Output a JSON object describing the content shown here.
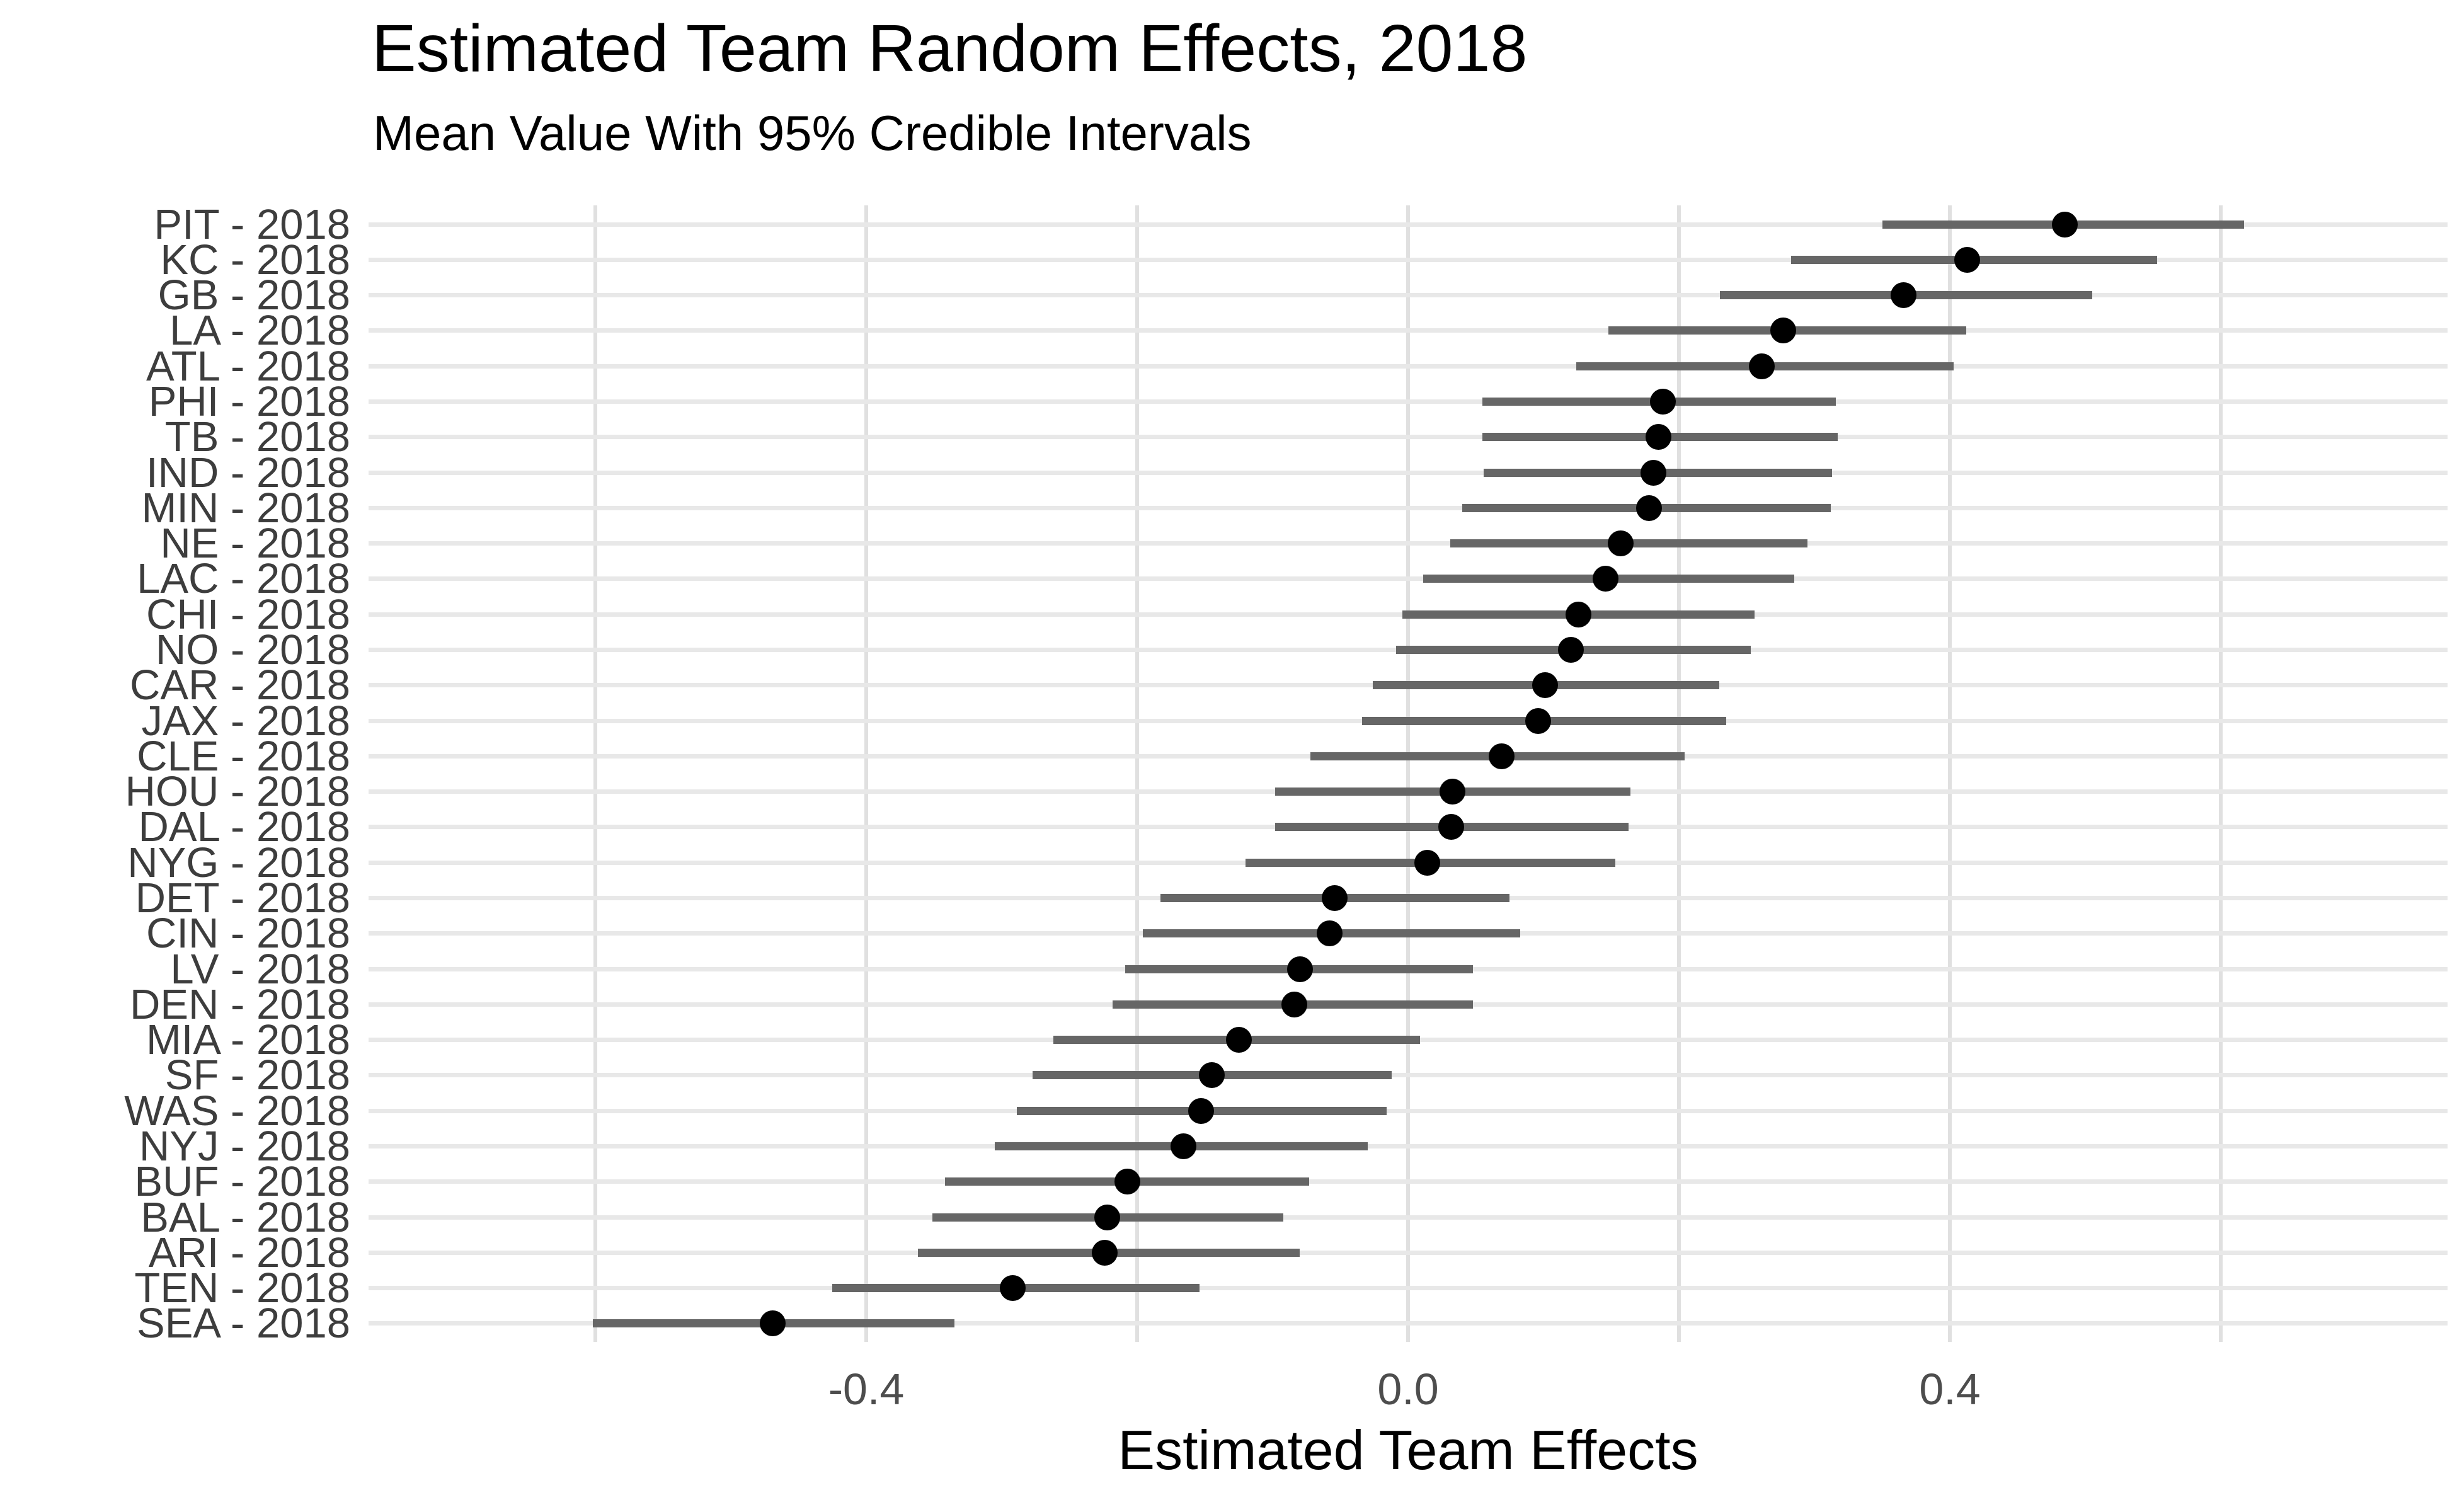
{
  "title": "Estimated Team Random Effects, 2018",
  "subtitle": "Mean Value With 95% Credible Intervals",
  "x_axis": {
    "label": "Estimated Team Effects",
    "ticks": [
      {
        "value": -0.4,
        "label": "-0.4"
      },
      {
        "value": 0.0,
        "label": "0.0"
      },
      {
        "value": 0.4,
        "label": "0.4"
      }
    ]
  },
  "colors": {
    "background": "#ffffff",
    "title_text": "#000000",
    "y_label_text": "#3d3d3d",
    "x_tick_text": "#4d4d4d",
    "horizontal_gridline": "#e8e8e8",
    "vertical_gridline": "#e0e0e0",
    "interval_line": "#666666",
    "mean_dot": "#000000"
  },
  "chart_data": {
    "type": "scatter",
    "subtype": "dot-with-95ci-pointrange",
    "title": "Estimated Team Random Effects, 2018",
    "subtitle": "Mean Value With 95% Credible Intervals",
    "xlabel": "Estimated Team Effects",
    "ylabel": "",
    "xlim": [
      -0.775,
      0.767
    ],
    "x_tick_values": [
      -0.4,
      0.0,
      0.4
    ],
    "x_gridline_values": [
      -0.6,
      -0.4,
      -0.2,
      0.0,
      0.2,
      0.4,
      0.6
    ],
    "grid": true,
    "legend": false,
    "orientation": "horizontal-rows-sorted-descending",
    "points": [
      {
        "label": "PIT - 2018",
        "mean": 0.485,
        "lower": 0.35,
        "upper": 0.617
      },
      {
        "label": "KC - 2018",
        "mean": 0.413,
        "lower": 0.283,
        "upper": 0.553
      },
      {
        "label": "GB - 2018",
        "mean": 0.366,
        "lower": 0.23,
        "upper": 0.505
      },
      {
        "label": "LA - 2018",
        "mean": 0.277,
        "lower": 0.148,
        "upper": 0.412
      },
      {
        "label": "ATL - 2018",
        "mean": 0.261,
        "lower": 0.124,
        "upper": 0.403
      },
      {
        "label": "PHI - 2018",
        "mean": 0.188,
        "lower": 0.055,
        "upper": 0.316
      },
      {
        "label": "TB - 2018",
        "mean": 0.185,
        "lower": 0.055,
        "upper": 0.317
      },
      {
        "label": "IND - 2018",
        "mean": 0.181,
        "lower": 0.056,
        "upper": 0.313
      },
      {
        "label": "MIN - 2018",
        "mean": 0.178,
        "lower": 0.04,
        "upper": 0.312
      },
      {
        "label": "NE - 2018",
        "mean": 0.157,
        "lower": 0.031,
        "upper": 0.295
      },
      {
        "label": "LAC - 2018",
        "mean": 0.146,
        "lower": 0.011,
        "upper": 0.285
      },
      {
        "label": "CHI - 2018",
        "mean": 0.126,
        "lower": -0.004,
        "upper": 0.256
      },
      {
        "label": "NO - 2018",
        "mean": 0.12,
        "lower": -0.009,
        "upper": 0.253
      },
      {
        "label": "CAR - 2018",
        "mean": 0.101,
        "lower": -0.026,
        "upper": 0.23
      },
      {
        "label": "JAX - 2018",
        "mean": 0.096,
        "lower": -0.034,
        "upper": 0.235
      },
      {
        "label": "CLE - 2018",
        "mean": 0.069,
        "lower": -0.072,
        "upper": 0.204
      },
      {
        "label": "HOU - 2018",
        "mean": 0.033,
        "lower": -0.098,
        "upper": 0.164
      },
      {
        "label": "DAL - 2018",
        "mean": 0.032,
        "lower": -0.098,
        "upper": 0.163
      },
      {
        "label": "NYG - 2018",
        "mean": 0.014,
        "lower": -0.12,
        "upper": 0.153
      },
      {
        "label": "DET - 2018",
        "mean": -0.054,
        "lower": -0.183,
        "upper": 0.075
      },
      {
        "label": "CIN - 2018",
        "mean": -0.058,
        "lower": -0.196,
        "upper": 0.083
      },
      {
        "label": "LV - 2018",
        "mean": -0.08,
        "lower": -0.209,
        "upper": 0.048
      },
      {
        "label": "DEN - 2018",
        "mean": -0.084,
        "lower": -0.218,
        "upper": 0.048
      },
      {
        "label": "MIA - 2018",
        "mean": -0.125,
        "lower": -0.262,
        "upper": 0.009
      },
      {
        "label": "SF - 2018",
        "mean": -0.145,
        "lower": -0.277,
        "upper": -0.012
      },
      {
        "label": "WAS - 2018",
        "mean": -0.153,
        "lower": -0.289,
        "upper": -0.016
      },
      {
        "label": "NYJ - 2018",
        "mean": -0.166,
        "lower": -0.305,
        "upper": -0.03
      },
      {
        "label": "BUF - 2018",
        "mean": -0.207,
        "lower": -0.342,
        "upper": -0.073
      },
      {
        "label": "BAL - 2018",
        "mean": -0.222,
        "lower": -0.351,
        "upper": -0.092
      },
      {
        "label": "ARI - 2018",
        "mean": -0.224,
        "lower": -0.362,
        "upper": -0.08
      },
      {
        "label": "TEN - 2018",
        "mean": -0.292,
        "lower": -0.425,
        "upper": -0.154
      },
      {
        "label": "SEA - 2018",
        "mean": -0.469,
        "lower": -0.602,
        "upper": -0.335
      }
    ]
  }
}
